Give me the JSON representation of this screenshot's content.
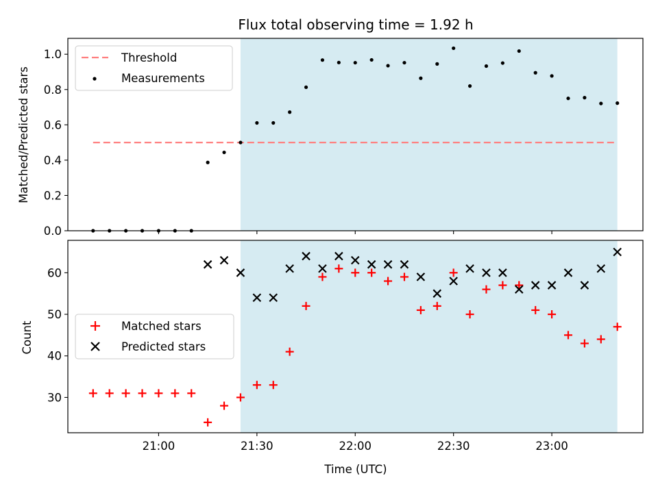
{
  "chart_data": {
    "type": "scatter",
    "title": "Flux total observing time = 1.92 h",
    "xlabel": "Time (UTC)",
    "x_ticks": [
      "21:00",
      "21:30",
      "22:00",
      "22:30",
      "23:00"
    ],
    "x_tick_minutes": [
      1260,
      1290,
      1320,
      1350,
      1380
    ],
    "times": [
      "20:40",
      "20:45",
      "20:50",
      "20:55",
      "21:00",
      "21:05",
      "21:10",
      "21:15",
      "21:20",
      "21:25",
      "21:30",
      "21:35",
      "21:40",
      "21:45",
      "21:50",
      "21:55",
      "22:00",
      "22:05",
      "22:10",
      "22:15",
      "22:20",
      "22:25",
      "22:30",
      "22:35",
      "22:40",
      "22:45",
      "22:50",
      "22:55",
      "23:00",
      "23:05",
      "23:10",
      "23:15",
      "23:20"
    ],
    "shaded_interval": [
      "21:25",
      "23:20"
    ],
    "shade_color": "#add8e6",
    "panels": [
      {
        "ylabel": "Matched/Predicted stars",
        "ylim": [
          0,
          1.09
        ],
        "yticks": [
          "0.0",
          "0.2",
          "0.4",
          "0.6",
          "0.8",
          "1.0"
        ],
        "ytick_values": [
          0,
          0.2,
          0.4,
          0.6,
          0.8,
          1.0
        ],
        "legend": "top-left",
        "threshold": {
          "name": "Threshold",
          "value": 0.5,
          "from": "20:40",
          "to": "23:20",
          "color": "#ff7f7f"
        },
        "series": [
          {
            "name": "Measurements",
            "marker": "dot",
            "color": "#000000",
            "values": [
              0,
              0,
              0,
              0,
              0,
              0,
              0,
              0.387,
              0.444,
              0.5,
              0.611,
              0.611,
              0.672,
              0.813,
              0.967,
              0.953,
              0.952,
              0.968,
              0.935,
              0.952,
              0.864,
              0.945,
              1.034,
              0.82,
              0.933,
              0.95,
              1.018,
              0.895,
              0.877,
              0.75,
              0.754,
              0.721,
              0.723
            ]
          }
        ]
      },
      {
        "ylabel": "Count",
        "ylim": [
          21.5,
          67.8
        ],
        "yticks": [
          "30",
          "40",
          "50",
          "60"
        ],
        "ytick_values": [
          30,
          40,
          50,
          60
        ],
        "legend": "center-left",
        "series": [
          {
            "name": "Matched stars",
            "marker": "plus",
            "color": "#ff0000",
            "values": [
              31,
              31,
              31,
              31,
              31,
              31,
              31,
              24,
              28,
              30,
              33,
              33,
              41,
              52,
              59,
              61,
              60,
              60,
              58,
              59,
              51,
              52,
              60,
              50,
              56,
              57,
              57,
              51,
              50,
              45,
              43,
              44,
              47
            ]
          },
          {
            "name": "Predicted stars",
            "marker": "x",
            "color": "#000000",
            "values": [
              null,
              null,
              null,
              null,
              null,
              null,
              null,
              62,
              63,
              60,
              54,
              54,
              61,
              64,
              61,
              64,
              63,
              62,
              62,
              62,
              59,
              55,
              58,
              61,
              60,
              60,
              56,
              57,
              57,
              60,
              57,
              61,
              65
            ]
          }
        ]
      }
    ]
  }
}
